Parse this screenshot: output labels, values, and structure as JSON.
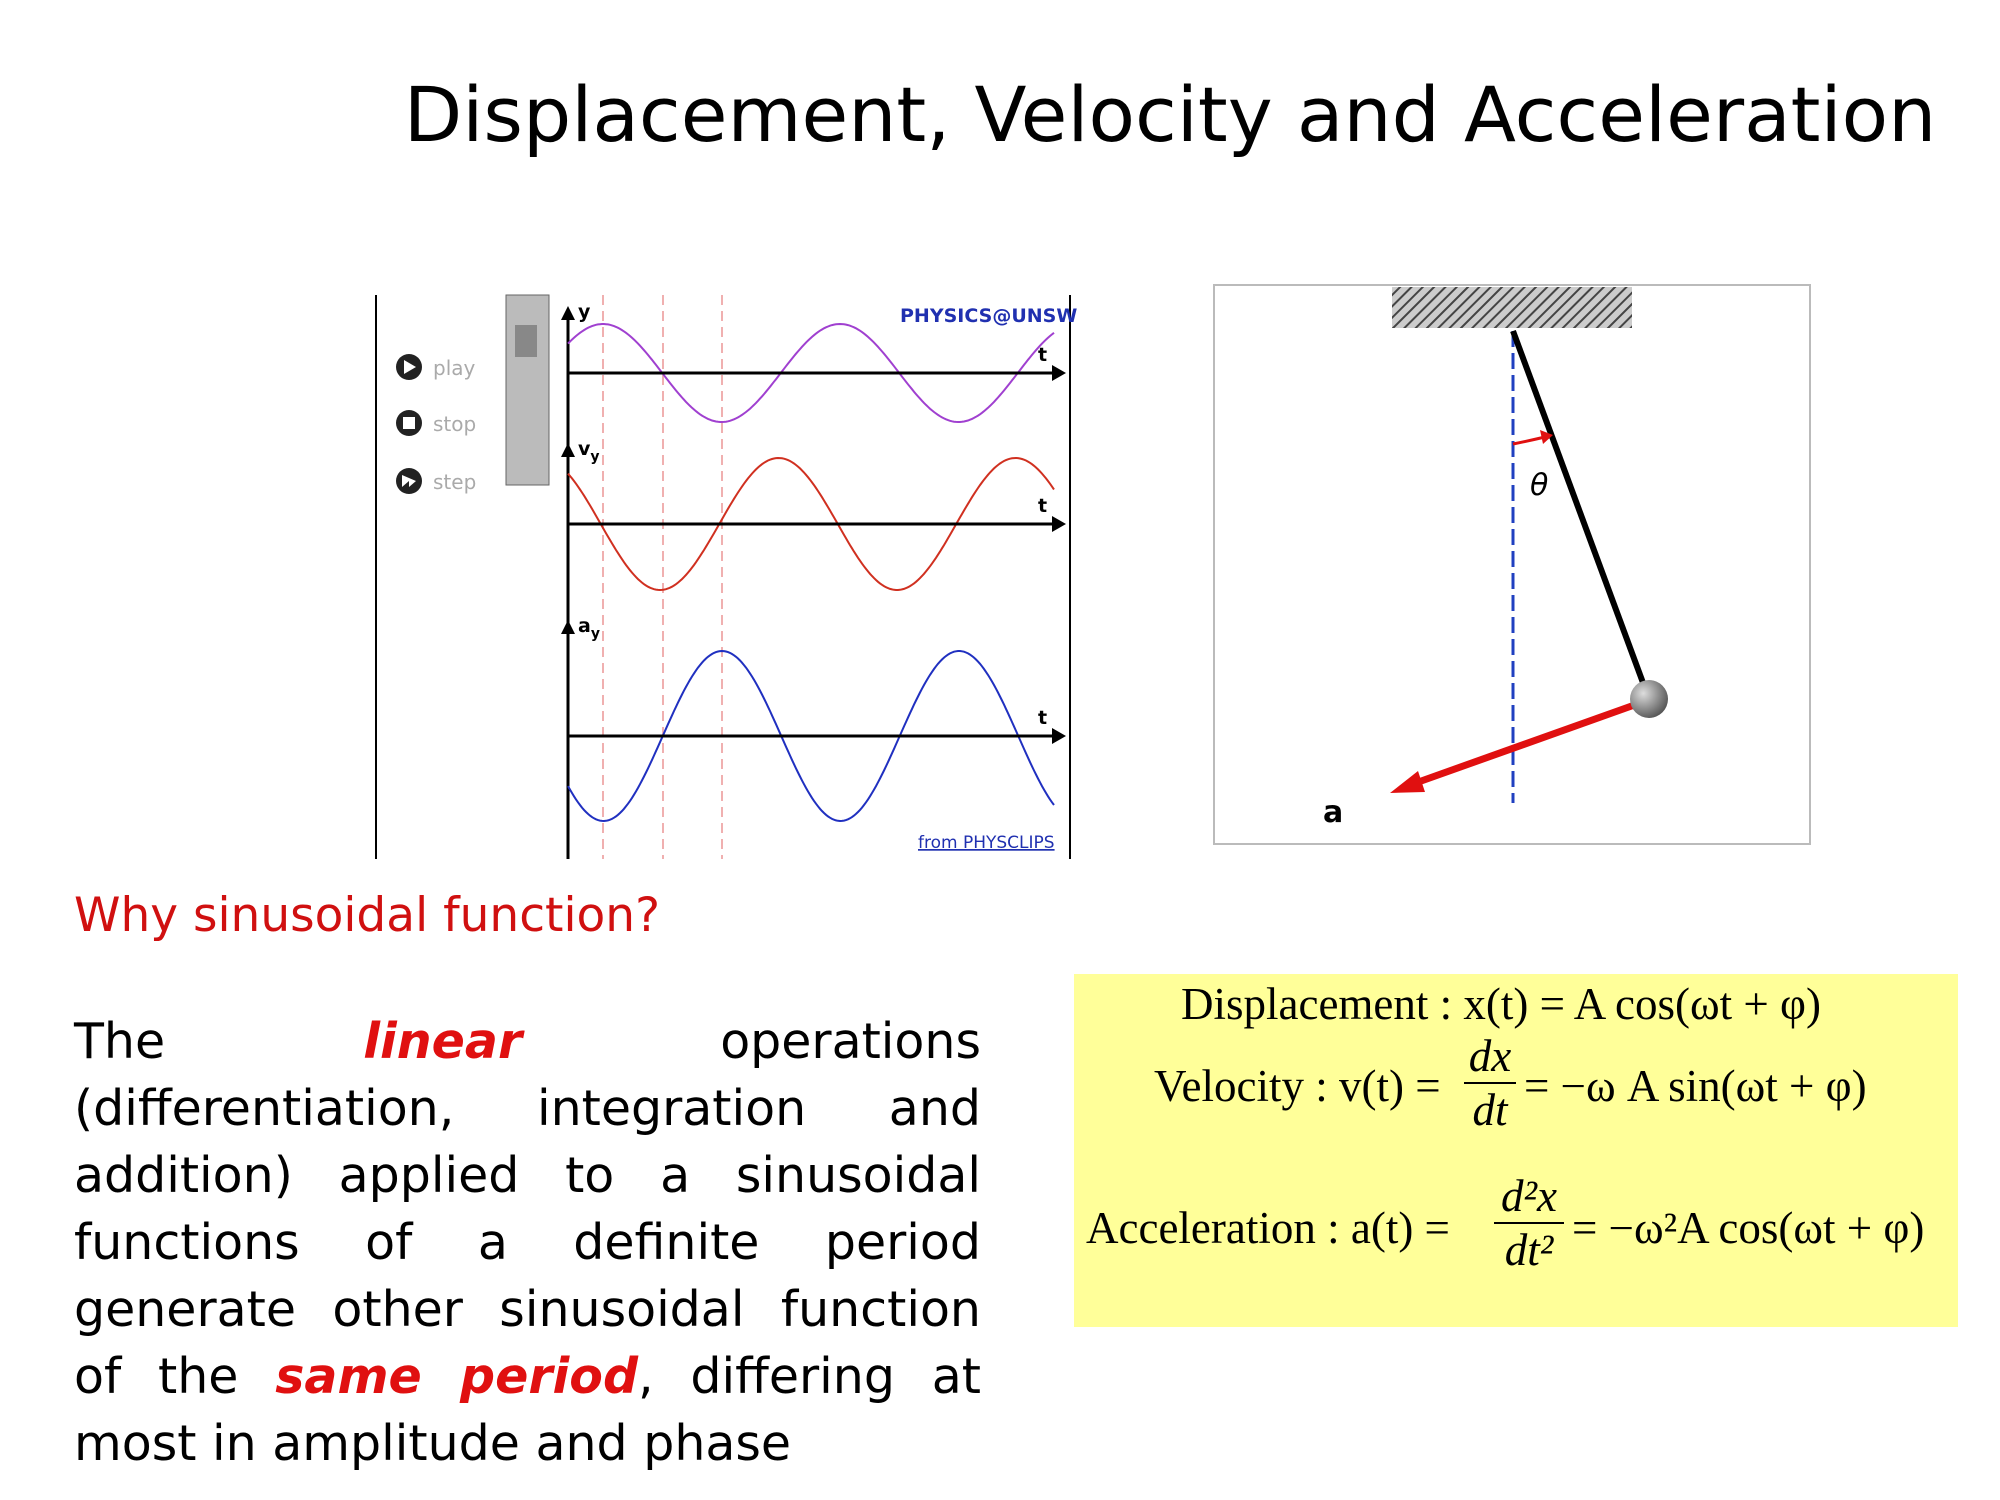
{
  "title": "Displacement, Velocity and Acceleration",
  "left_figure": {
    "buttons": [
      "play",
      "stop",
      "step"
    ],
    "brand": "PHYSICS@UNSW",
    "credit": "from PHYSCLIPS",
    "axes": [
      {
        "label": "y",
        "sub": null,
        "time": "t"
      },
      {
        "label": "v",
        "sub": "y",
        "time": "t"
      },
      {
        "label": "a",
        "sub": "y",
        "time": "t"
      }
    ]
  },
  "right_figure": {
    "angle": "θ",
    "accel": "a"
  },
  "question": "Why sinusoidal function?",
  "paragraph": [
    {
      "text": "The ",
      "emphasis": false
    },
    {
      "text": "linear",
      "emphasis": true
    },
    {
      "text": " operations (differentiation, integration and addition) applied to a sinusoidal functions of a definite period generate other sinusoidal function of the ",
      "emphasis": false
    },
    {
      "text": "same period",
      "emphasis": true
    },
    {
      "text": ", differing at most in amplitude and phase",
      "emphasis": false
    }
  ],
  "equations": [
    {
      "lhs": "Displacement : x(t) = A cos(ωt + φ)"
    },
    {
      "lhs": "Velocity : v(t) =",
      "num": "dx",
      "den": "dt",
      "rhs": "= −ω A sin(ωt + φ)"
    },
    {
      "lhs": "Acceleration : a(t) =",
      "num": "d²x",
      "den": "dt²",
      "rhs": "= −ω²A cos(ωt + φ)"
    }
  ]
}
